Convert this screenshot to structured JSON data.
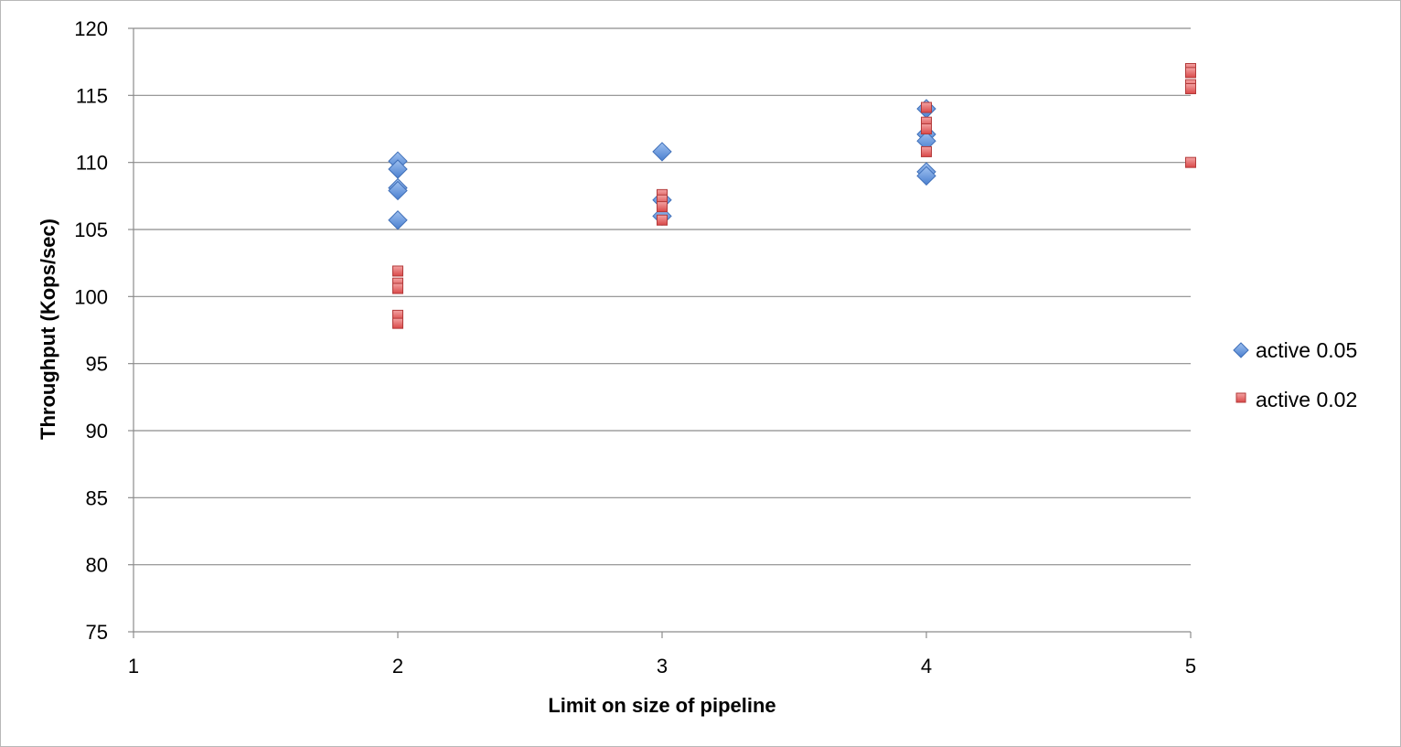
{
  "chart_data": {
    "type": "scatter",
    "title": "",
    "xlabel": "Limit on size of pipeline",
    "ylabel": "Throughput (Kops/sec)",
    "xlim": [
      1,
      5
    ],
    "ylim": [
      75,
      120
    ],
    "xticks": [
      "1",
      "2",
      "3",
      "4",
      "5"
    ],
    "yticks": [
      "75",
      "80",
      "85",
      "90",
      "95",
      "100",
      "105",
      "110",
      "115",
      "120"
    ],
    "grid": "horizontal",
    "legend_position": "right",
    "series": [
      {
        "name": "active 0.05",
        "marker": "diamond",
        "color": "#5b8fd8",
        "points": [
          {
            "x": 2,
            "y": 110.1
          },
          {
            "x": 2,
            "y": 109.5
          },
          {
            "x": 2,
            "y": 108.1
          },
          {
            "x": 2,
            "y": 107.9
          },
          {
            "x": 2,
            "y": 105.7
          },
          {
            "x": 3,
            "y": 110.8
          },
          {
            "x": 3,
            "y": 107.2
          },
          {
            "x": 3,
            "y": 106.0
          },
          {
            "x": 4,
            "y": 114.0
          },
          {
            "x": 4,
            "y": 112.1
          },
          {
            "x": 4,
            "y": 111.6
          },
          {
            "x": 4,
            "y": 109.3
          },
          {
            "x": 4,
            "y": 109.0
          }
        ]
      },
      {
        "name": "active 0.02",
        "marker": "square",
        "color": "#e05a5a",
        "points": [
          {
            "x": 2,
            "y": 101.9
          },
          {
            "x": 2,
            "y": 101.0
          },
          {
            "x": 2,
            "y": 100.6
          },
          {
            "x": 2,
            "y": 98.6
          },
          {
            "x": 2,
            "y": 98.0
          },
          {
            "x": 3,
            "y": 107.6
          },
          {
            "x": 3,
            "y": 107.2
          },
          {
            "x": 3,
            "y": 106.7
          },
          {
            "x": 3,
            "y": 105.7
          },
          {
            "x": 4,
            "y": 114.1
          },
          {
            "x": 4,
            "y": 113.0
          },
          {
            "x": 4,
            "y": 112.5
          },
          {
            "x": 4,
            "y": 110.8
          },
          {
            "x": 5,
            "y": 117.0
          },
          {
            "x": 5,
            "y": 116.7
          },
          {
            "x": 5,
            "y": 115.8
          },
          {
            "x": 5,
            "y": 115.5
          },
          {
            "x": 5,
            "y": 110.0
          }
        ]
      }
    ]
  }
}
